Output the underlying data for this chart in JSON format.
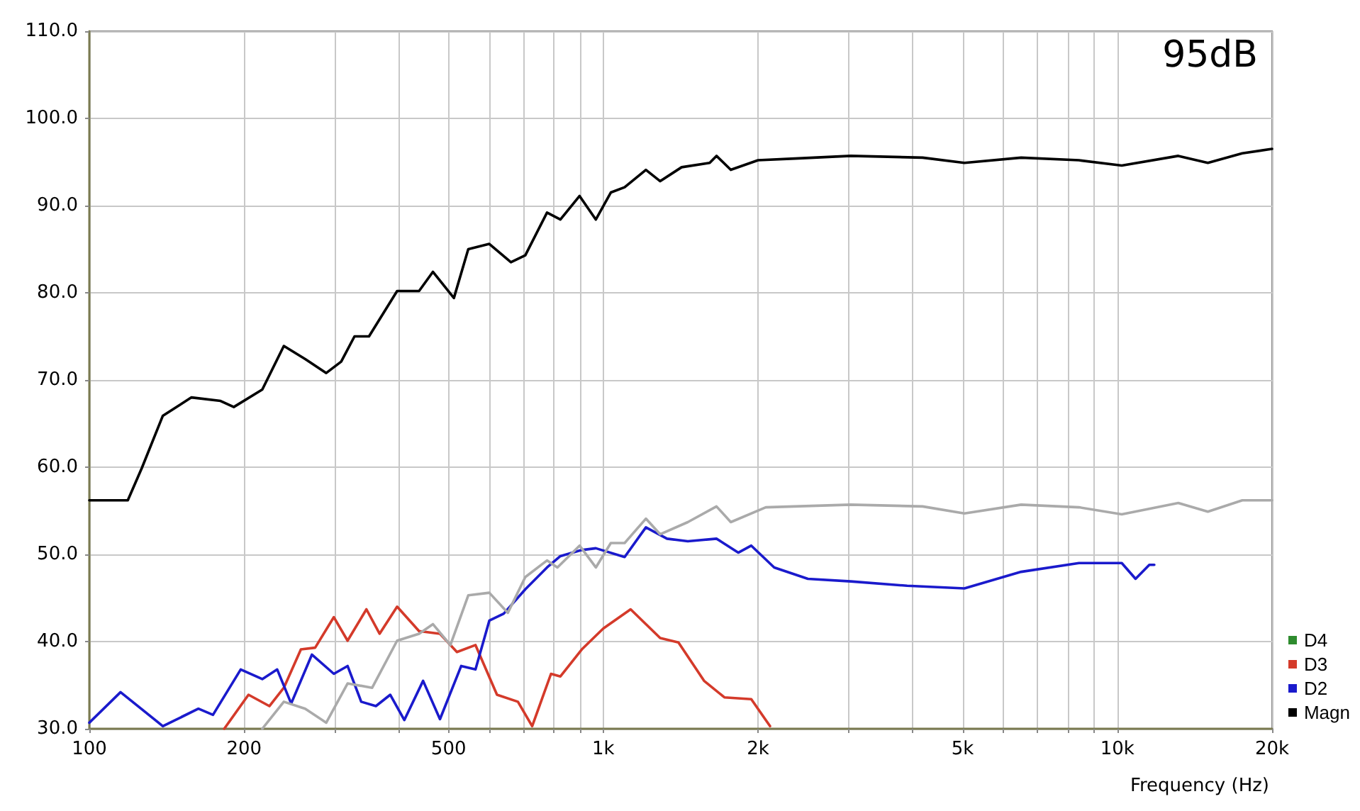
{
  "chart_data": {
    "type": "line",
    "xlabel": "Frequency (Hz)",
    "annotations": [
      "95dB"
    ],
    "log": "x",
    "grid": true,
    "legend": "bottom right",
    "marker": "none",
    "line_style": "solid",
    "xlim": [
      100,
      20000
    ],
    "xticks": [
      {
        "value": 100,
        "label": "100"
      },
      {
        "value": 200,
        "label": "200"
      },
      {
        "value": 300,
        "label": null
      },
      {
        "value": 400,
        "label": null
      },
      {
        "value": 500,
        "label": "500"
      },
      {
        "value": 600,
        "label": null
      },
      {
        "value": 700,
        "label": null
      },
      {
        "value": 800,
        "label": null
      },
      {
        "value": 900,
        "label": null
      },
      {
        "value": 1000,
        "label": "1k"
      },
      {
        "value": 2000,
        "label": "2k"
      },
      {
        "value": 3000,
        "label": null
      },
      {
        "value": 4000,
        "label": null
      },
      {
        "value": 5000,
        "label": "5k"
      },
      {
        "value": 6000,
        "label": null
      },
      {
        "value": 7000,
        "label": null
      },
      {
        "value": 8000,
        "label": null
      },
      {
        "value": 9000,
        "label": null
      },
      {
        "value": 10000,
        "label": "10k"
      },
      {
        "value": 20000,
        "label": "20k"
      }
    ],
    "ylim": [
      30,
      110
    ],
    "yticks": [
      {
        "value": 30,
        "label": "30.0"
      },
      {
        "value": 40,
        "label": "40.0"
      },
      {
        "value": 50,
        "label": "50.0"
      },
      {
        "value": 60,
        "label": "60.0"
      },
      {
        "value": 70,
        "label": "70.0"
      },
      {
        "value": 80,
        "label": "80.0"
      },
      {
        "value": 90,
        "label": "90.0"
      },
      {
        "value": 100,
        "label": "100.0"
      },
      {
        "value": 110,
        "label": "110.0"
      }
    ],
    "series": [
      {
        "name": "D4",
        "color": "#2e8b2e"
      },
      {
        "name": "D3",
        "color": "#d43a2a",
        "x": [
          183,
          204,
          224,
          239,
          258,
          275,
          299,
          318,
          346,
          367,
          397,
          438,
          481,
          519,
          564,
          621,
          682,
          727,
          791,
          825,
          908,
          1000,
          1130,
          1290,
          1400,
          1570,
          1720,
          1940,
          2110
        ],
        "values": [
          30.0,
          33.9,
          32.6,
          34.7,
          39.1,
          39.3,
          42.8,
          40.1,
          43.7,
          40.9,
          44.0,
          41.2,
          40.9,
          38.8,
          39.6,
          33.9,
          33.1,
          30.3,
          36.3,
          36.0,
          39.1,
          41.5,
          43.7,
          40.4,
          39.9,
          35.5,
          33.6,
          33.4,
          30.3
        ]
      },
      {
        "name": "D2",
        "color": "#1a1acc",
        "x": [
          100,
          115,
          139,
          163,
          174,
          197,
          217,
          232,
          247,
          271,
          299,
          318,
          338,
          361,
          385,
          410,
          446,
          481,
          529,
          564,
          600,
          640,
          705,
          777,
          825,
          908,
          967,
          1100,
          1210,
          1330,
          1460,
          1660,
          1830,
          1940,
          2150,
          2500,
          3030,
          3900,
          5040,
          6500,
          8420,
          10200,
          10850,
          11540,
          11800
        ],
        "values": [
          30.7,
          34.2,
          30.3,
          32.3,
          31.6,
          36.8,
          35.7,
          36.8,
          32.9,
          38.5,
          36.3,
          37.2,
          33.1,
          32.6,
          33.9,
          31.0,
          35.5,
          31.1,
          37.2,
          36.8,
          42.4,
          43.2,
          46.0,
          48.5,
          49.8,
          50.5,
          50.7,
          49.7,
          53.1,
          51.8,
          51.5,
          51.8,
          50.2,
          51.0,
          48.5,
          47.2,
          46.9,
          46.4,
          46.1,
          48.0,
          49.0,
          49.0,
          47.2,
          48.8,
          48.8
        ]
      },
      {
        "name": "Magn",
        "color": "#000000",
        "x": [
          100,
          118.8,
          126.5,
          139,
          158,
          180,
          191,
          217,
          239,
          263,
          289,
          309,
          328,
          350,
          397,
          438,
          466,
          512,
          546,
          600,
          661,
          705,
          777,
          825,
          899,
          967,
          1034,
          1100,
          1210,
          1290,
          1420,
          1610,
          1660,
          1770,
          2000,
          2360,
          3030,
          4180,
          5040,
          6500,
          8420,
          10200,
          13140,
          15000,
          17500,
          20000
        ],
        "values": [
          56.2,
          56.2,
          59.9,
          65.9,
          68.0,
          67.6,
          66.9,
          68.9,
          73.9,
          72.4,
          70.8,
          72.1,
          75.0,
          75.0,
          80.2,
          80.2,
          82.4,
          79.4,
          85.0,
          85.6,
          83.5,
          84.3,
          89.2,
          88.4,
          91.1,
          88.4,
          91.5,
          92.1,
          94.1,
          92.8,
          94.4,
          94.9,
          95.7,
          94.1,
          95.2,
          95.4,
          95.7,
          95.5,
          94.9,
          95.5,
          95.2,
          94.6,
          95.7,
          94.9,
          96.0,
          96.5
        ]
      },
      {
        "color": "#aaaaaa",
        "x": [
          217,
          239,
          263,
          289,
          318,
          355,
          397,
          438,
          466,
          504,
          546,
          600,
          652,
          705,
          777,
          814,
          899,
          967,
          1034,
          1100,
          1210,
          1290,
          1460,
          1660,
          1770,
          2070,
          3030,
          4180,
          5040,
          6500,
          8420,
          10200,
          13140,
          15000,
          17500,
          20000
        ],
        "values": [
          30.0,
          33.1,
          32.3,
          30.7,
          35.2,
          34.7,
          40.1,
          40.9,
          42.0,
          39.6,
          45.3,
          45.6,
          43.3,
          47.4,
          49.3,
          48.5,
          51.0,
          48.5,
          51.3,
          51.3,
          54.1,
          52.3,
          53.7,
          55.5,
          53.7,
          55.4,
          55.7,
          55.5,
          54.7,
          55.7,
          55.4,
          54.6,
          55.9,
          54.9,
          56.2,
          56.2
        ]
      }
    ]
  }
}
